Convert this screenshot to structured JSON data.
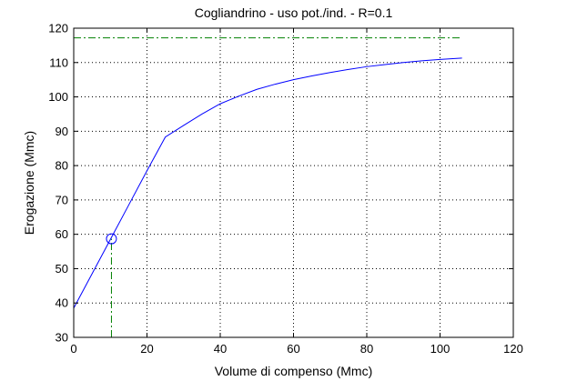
{
  "chart_data": {
    "type": "line",
    "title": "Cogliandrino  -  uso pot./ind.  -   R=0.1",
    "xlabel": "Volume di compenso (Mmc)",
    "ylabel": "Erogazione (Mmc)",
    "xlim": [
      0,
      120
    ],
    "ylim": [
      30,
      120
    ],
    "xticks": [
      0,
      20,
      40,
      60,
      80,
      100,
      120
    ],
    "yticks": [
      30,
      40,
      50,
      60,
      70,
      80,
      90,
      100,
      110,
      120
    ],
    "grid": true,
    "series": [
      {
        "color": "#0000ff",
        "style": "solid",
        "x": [
          0,
          5,
          10,
          15,
          20,
          25,
          30,
          35,
          40,
          45,
          50,
          55,
          60,
          65,
          70,
          75,
          80,
          85,
          90,
          95,
          100,
          106
        ],
        "y": [
          38.5,
          48.5,
          58.5,
          68.5,
          78.5,
          88.3,
          91.7,
          95.0,
          98.0,
          100.2,
          102.2,
          103.7,
          105.0,
          106.1,
          107.1,
          108.0,
          108.8,
          109.4,
          110.0,
          110.5,
          110.9,
          111.3
        ]
      }
    ],
    "reference_lines": [
      {
        "orientation": "horizontal",
        "y": 117.2,
        "x_from": 0,
        "x_to": 106,
        "color": "#008000",
        "style": "dash-dot"
      },
      {
        "orientation": "vertical",
        "x": 10.3,
        "y_from": 30,
        "y_to": 58.7,
        "color": "#008000",
        "style": "dash-dot"
      }
    ],
    "markers": [
      {
        "x": 10.3,
        "y": 58.7,
        "shape": "circle",
        "color": "#0000ff"
      }
    ]
  }
}
